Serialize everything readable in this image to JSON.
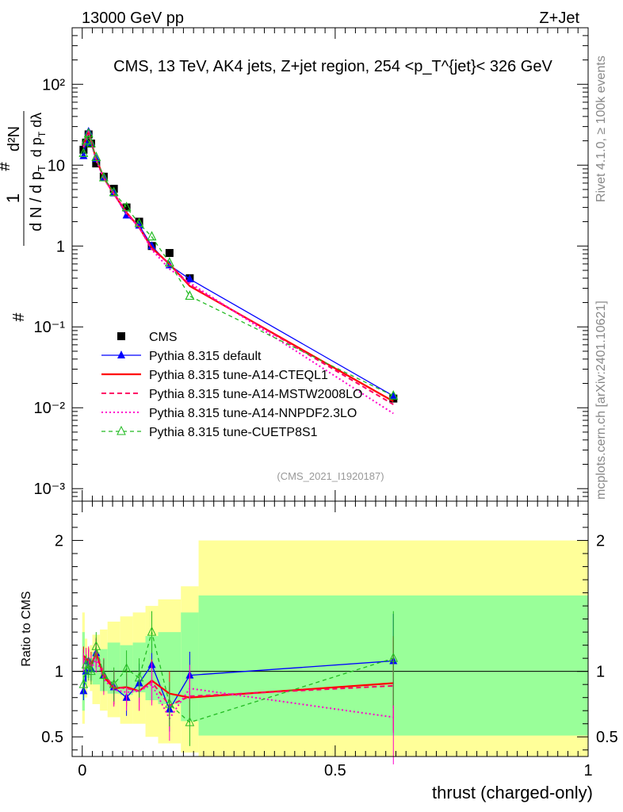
{
  "header": {
    "left": "13000 GeV pp",
    "right": "Z+Jet"
  },
  "side_labels": {
    "rivet": "Rivet 4.1.0, ≥ 100k events",
    "mcplots": "mcplots.cern.ch [arXiv:2401.10621]"
  },
  "colors": {
    "cms": "#000000",
    "default": "#0000ff",
    "cteql1": "#ff0000",
    "mstw": "#ff0066",
    "nnpdf": "#ff00cc",
    "cuetp8s1": "#22bb22",
    "band_inner": "#99ff99",
    "band_outer": "#ffff99"
  },
  "chart_data": [
    {
      "type": "line",
      "title": "CMS, 13 TeV, AK4 jets, Z+jet region, 254 <p_T^{jet}< 326 GeV",
      "xlabel": "thrust (charged-only)",
      "ylabel": "1/dN / dp_T  d²N/dp_T dλ",
      "yscale": "log",
      "xlim": [
        -0.02,
        1.0
      ],
      "ylim": [
        0.0007,
        500
      ],
      "y_tick_labels": [
        "10⁻³",
        "10⁻²",
        "10⁻¹",
        "1",
        "10",
        "10²"
      ],
      "watermark": "(CMS_2021_I1920187)",
      "x": [
        0.0025,
        0.0075,
        0.0125,
        0.0175,
        0.0275,
        0.0425,
        0.0625,
        0.0875,
        0.1125,
        0.1375,
        0.1725,
        0.2125,
        0.615
      ],
      "series": [
        {
          "name": "CMS",
          "style": "data",
          "values": [
            15.5,
            19.0,
            24.0,
            18.5,
            10.5,
            7.2,
            5.1,
            3.0,
            2.0,
            1.0,
            0.82,
            0.4,
            0.013
          ]
        },
        {
          "name": "Pythia 8.315 default",
          "style": "default",
          "values": [
            13.0,
            19.0,
            26.0,
            19.0,
            12.0,
            7.0,
            4.5,
            2.4,
            1.8,
            1.0,
            0.58,
            0.39,
            0.014
          ]
        },
        {
          "name": "Pythia 8.315 tune-A14-CTEQL1",
          "style": "cteql1",
          "values": [
            17.5,
            21.0,
            26.0,
            19.5,
            12.0,
            7.0,
            4.4,
            2.6,
            1.7,
            0.95,
            0.6,
            0.32,
            0.012
          ]
        },
        {
          "name": "Pythia 8.315 tune-A14-MSTW2008LO",
          "style": "mstw",
          "values": [
            17.0,
            20.5,
            26.5,
            19.0,
            12.0,
            7.0,
            4.5,
            2.6,
            1.7,
            0.92,
            0.6,
            0.33,
            0.011
          ]
        },
        {
          "name": "Pythia 8.315 tune-A14-NNPDF2.3LO",
          "style": "nnpdf",
          "values": [
            16.5,
            21.0,
            26.0,
            19.0,
            11.5,
            6.8,
            4.4,
            2.5,
            1.7,
            0.9,
            0.52,
            0.35,
            0.0085
          ]
        },
        {
          "name": "Pythia 8.315 tune-CUETP8S1",
          "style": "cuetp8s1",
          "values": [
            14.0,
            20.0,
            24.5,
            18.5,
            12.5,
            7.0,
            4.6,
            3.0,
            1.9,
            1.3,
            0.62,
            0.24,
            0.014
          ]
        }
      ]
    },
    {
      "type": "line",
      "ylabel": "Ratio to CMS",
      "xlabel": "thrust (charged-only)",
      "xlim": [
        -0.02,
        1.0
      ],
      "ylim": [
        0.35,
        2.3
      ],
      "y_tick_labels": [
        "0.5",
        "1",
        "2"
      ],
      "x_tick_labels": [
        "0",
        "0.5",
        "1"
      ],
      "bin_edges": [
        0.0,
        0.005,
        0.01,
        0.015,
        0.02,
        0.035,
        0.05,
        0.075,
        0.1,
        0.125,
        0.15,
        0.195,
        0.23,
        1.0
      ],
      "band_inner": [
        [
          0.7,
          1.3
        ],
        [
          0.9,
          1.12
        ],
        [
          0.95,
          1.08
        ],
        [
          0.93,
          1.1
        ],
        [
          0.9,
          1.15
        ],
        [
          0.85,
          1.17
        ],
        [
          0.83,
          1.22
        ],
        [
          0.82,
          1.2
        ],
        [
          0.84,
          1.22
        ],
        [
          0.78,
          1.27
        ],
        [
          0.75,
          1.3
        ],
        [
          0.62,
          1.45
        ],
        [
          0.51,
          1.58
        ]
      ],
      "band_outer": [
        [
          0.6,
          1.45
        ],
        [
          0.8,
          1.25
        ],
        [
          0.88,
          1.18
        ],
        [
          0.85,
          1.2
        ],
        [
          0.75,
          1.28
        ],
        [
          0.7,
          1.32
        ],
        [
          0.65,
          1.38
        ],
        [
          0.6,
          1.42
        ],
        [
          0.6,
          1.45
        ],
        [
          0.5,
          1.5
        ],
        [
          0.45,
          1.55
        ],
        [
          0.38,
          1.65
        ],
        [
          0.35,
          2.0
        ]
      ],
      "x": [
        0.0025,
        0.0075,
        0.0125,
        0.0175,
        0.0275,
        0.0425,
        0.0625,
        0.0875,
        0.1125,
        0.1375,
        0.1725,
        0.2125,
        0.615
      ],
      "series": [
        {
          "name": "Pythia 8.315 default",
          "style": "default",
          "values": [
            0.85,
            1.0,
            1.08,
            1.02,
            1.14,
            0.97,
            0.88,
            0.8,
            0.91,
            1.05,
            0.71,
            0.97,
            1.08
          ]
        },
        {
          "name": "Pythia 8.315 tune-A14-CTEQL1",
          "style": "cteql1",
          "values": [
            1.12,
            1.1,
            1.08,
            1.05,
            1.14,
            0.96,
            0.87,
            0.88,
            0.85,
            0.93,
            0.83,
            0.8,
            0.91
          ]
        },
        {
          "name": "Pythia 8.315 tune-A14-MSTW2008LO",
          "style": "mstw",
          "values": [
            1.1,
            1.08,
            1.1,
            1.03,
            1.15,
            0.98,
            0.88,
            0.87,
            0.85,
            0.92,
            0.74,
            0.81,
            0.89
          ]
        },
        {
          "name": "Pythia 8.315 tune-A14-NNPDF2.3LO",
          "style": "nnpdf",
          "values": [
            1.07,
            1.1,
            1.08,
            1.02,
            1.1,
            0.94,
            0.86,
            0.84,
            0.85,
            0.9,
            0.64,
            0.87,
            0.65
          ]
        },
        {
          "name": "Pythia 8.315 tune-CUETP8S1",
          "style": "cuetp8s1",
          "values": [
            0.9,
            1.05,
            1.02,
            1.0,
            1.19,
            0.97,
            0.9,
            1.02,
            0.95,
            1.3,
            0.75,
            0.61,
            1.1
          ]
        }
      ]
    }
  ]
}
